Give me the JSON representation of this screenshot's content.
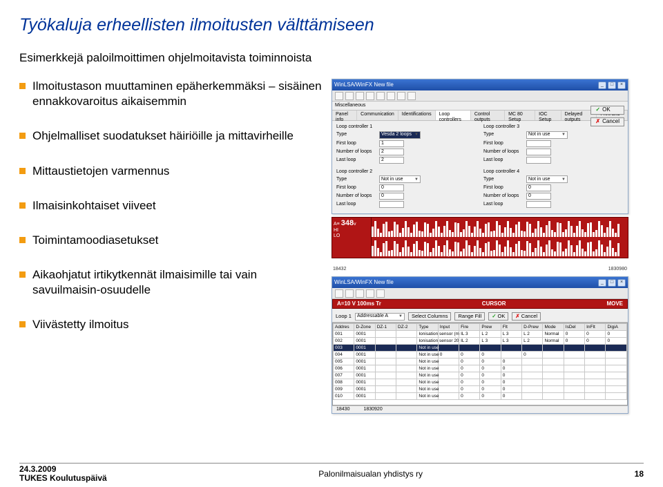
{
  "title": "Työkaluja erheellisten ilmoitusten välttämiseen",
  "subtitle": "Esimerkkejä paloilmoittimen ohjelmoitavista toiminnoista",
  "bullets": [
    "Ilmoitustason muuttaminen epäherkemmäksi – sisäinen ennakkovaroitus aikaisemmin",
    "Ohjelmalliset suodatukset häiriöille ja mittavirheille",
    "Mittaustietojen varmennus",
    "Ilmaisinkohtaiset viiveet",
    "Toimintamoodiasetukset",
    "Aikaohjatut irtikytkennät ilmaisimille tai vain savuilmaisin-osuudelle",
    "Viivästetty ilmoitus"
  ],
  "window1": {
    "title": "WinLSA/WinFX New file",
    "winbuttons": [
      "_",
      "□",
      "×"
    ],
    "sectionLabel": "Miscellaneous",
    "tabs": [
      "Panel info",
      "Communication",
      "Identifications",
      "Loop controllers",
      "Control outputs",
      "MC 80 Setup",
      "IOC Setup",
      "Delayed outputs",
      "Print and Log"
    ],
    "activeTabIndex": 3,
    "buttons": {
      "ok": "OK",
      "cancel": "Cancel"
    },
    "controllers": [
      {
        "title": "Loop controller 1",
        "type": "Vesda 2 loops",
        "typeDark": true,
        "first": "1",
        "num": "2",
        "last": "2"
      },
      {
        "title": "Loop controller 3",
        "type": "Not in use",
        "typeDark": false,
        "first": "",
        "num": "",
        "last": ""
      },
      {
        "title": "Loop controller 2",
        "type": "Not in use",
        "typeDark": false,
        "first": "0",
        "num": "0",
        "last": ""
      },
      {
        "title": "Loop controller 4",
        "type": "Not in use",
        "typeDark": false,
        "first": "0",
        "num": "0",
        "last": ""
      }
    ],
    "fieldLabels": {
      "type": "Type",
      "first": "First loop",
      "num": "Number of loops",
      "last": "Last loop"
    },
    "strip": {
      "prefix": "A≡",
      "reading": "348",
      "unit": "v",
      "hi": "HI",
      "lo": "LO",
      "squiggle": "∫",
      "axis": [
        "18432",
        "1830980"
      ]
    }
  },
  "window2": {
    "title": "WinLSA/WinFX New file",
    "winbuttons": [
      "_",
      "□",
      "×"
    ],
    "cursor": {
      "left": "A=10 V    100ms  Tr",
      "mid": "CURSOR",
      "right": "MOVE"
    },
    "loopbar": {
      "loopLabel": "Loop 1",
      "addr": "Addressable A",
      "selcol": "Select Columns",
      "range": "Range Fill",
      "ok": "OK",
      "cancel": "Cancel"
    },
    "columns": [
      "Addres",
      "D-Zone",
      "DZ-1",
      "DZ-2",
      "Type",
      "Input",
      "Fire",
      "Prew",
      "Flt",
      "D-Prew",
      "Mode",
      "IsDel",
      "InFlt",
      "DigiA"
    ],
    "rows": [
      [
        "001",
        "0001",
        "",
        "",
        "Ionisation sensor (m",
        "",
        "IL 3",
        "L 2",
        "L 3",
        "L 2",
        "Normal",
        "0",
        "0",
        "0"
      ],
      [
        "002",
        "0001",
        "",
        "",
        "Ionisation sensor 20",
        "",
        "IL 2",
        "L 3",
        "L 3",
        "L 2",
        "Normal",
        "0",
        "0",
        "0"
      ],
      [
        "003",
        "0001",
        "",
        "",
        "Not in use",
        "",
        "",
        "",
        "",
        "",
        "",
        "",
        "",
        ""
      ],
      [
        "004",
        "0001",
        "",
        "",
        "Not in use",
        "0",
        "0",
        "0",
        "",
        "0",
        "",
        "",
        "",
        ""
      ],
      [
        "005",
        "0001",
        "",
        "",
        "Not in use",
        "",
        "0",
        "0",
        "0",
        "",
        "",
        "",
        "",
        ""
      ],
      [
        "006",
        "0001",
        "",
        "",
        "Not in use",
        "",
        "0",
        "0",
        "0",
        "",
        "",
        "",
        "",
        ""
      ],
      [
        "007",
        "0001",
        "",
        "",
        "Not in use",
        "",
        "0",
        "0",
        "0",
        "",
        "",
        "",
        "",
        ""
      ],
      [
        "008",
        "0001",
        "",
        "",
        "Not in use",
        "",
        "0",
        "0",
        "0",
        "",
        "",
        "",
        "",
        ""
      ],
      [
        "009",
        "0001",
        "",
        "",
        "Not in use",
        "",
        "0",
        "0",
        "0",
        "",
        "",
        "",
        "",
        ""
      ],
      [
        "010",
        "0001",
        "",
        "",
        "Not in use",
        "",
        "0",
        "0",
        "0",
        "",
        "",
        "",
        "",
        ""
      ]
    ],
    "highlightRowIndex": 2,
    "statusbar": [
      "18430",
      "1830920"
    ]
  },
  "footer": {
    "date": "24.3.2009",
    "org": "TUKES Koulutuspäivä",
    "mid": "Palonilmaisualan yhdistys ry",
    "page": "18"
  },
  "colors": {
    "titleColor": "#003399",
    "bulletSquare": "#f39c11",
    "titlebarTop": "#3a73d1",
    "titlebarBottom": "#1f4fa8",
    "redPanel": "#b01515",
    "highlightRow": "#1a2a55",
    "gridBorder": "#c7c7c7"
  }
}
